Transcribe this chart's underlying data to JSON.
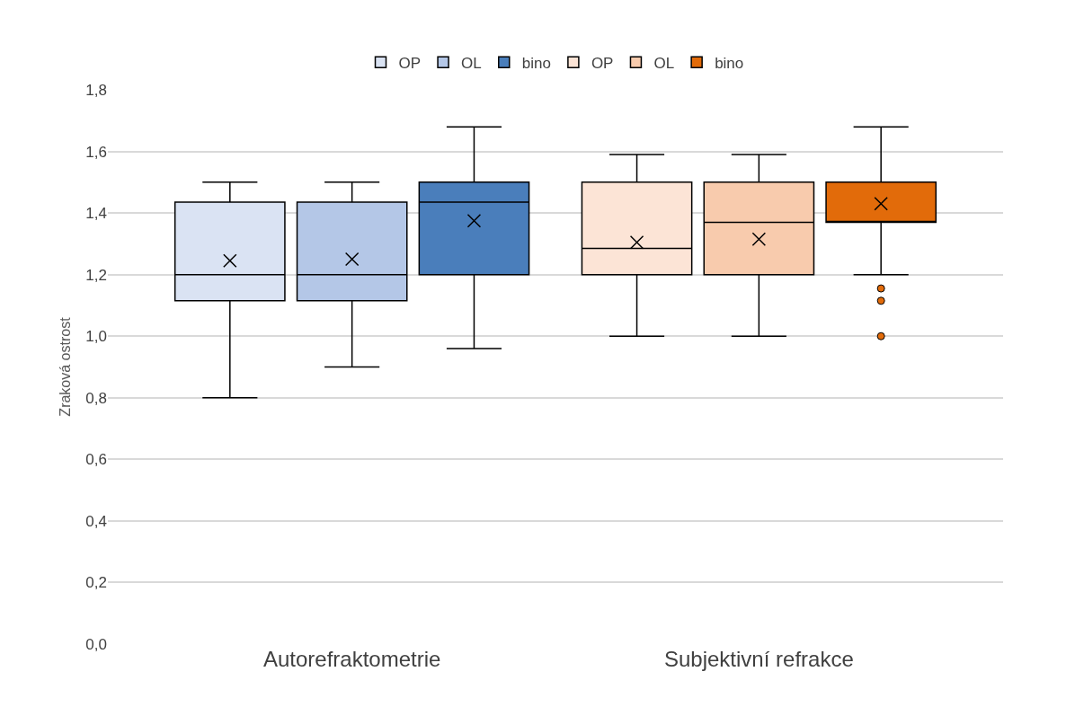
{
  "chart_data": {
    "type": "box",
    "ylabel": "Zraková ostrost",
    "categories": [
      "Autorefraktometrie",
      "Subjektivní refrakce"
    ],
    "ylim": [
      0,
      1.8
    ],
    "yticks": [
      {
        "value": 0,
        "label": "0,0"
      },
      {
        "value": 0.2,
        "label": "0,2"
      },
      {
        "value": 0.4,
        "label": "0,4"
      },
      {
        "value": 0.6,
        "label": "0,6"
      },
      {
        "value": 0.8,
        "label": "0,8"
      },
      {
        "value": 1.0,
        "label": "1,0"
      },
      {
        "value": 1.2,
        "label": "1,2"
      },
      {
        "value": 1.4,
        "label": "1,4"
      },
      {
        "value": 1.6,
        "label": "1,6"
      },
      {
        "value": 1.8,
        "label": "1,8"
      }
    ],
    "grid": "y",
    "legend": "top",
    "marker": "cross",
    "series": [
      {
        "name": "OP",
        "color": "#dae3f3",
        "boxes": [
          {
            "low": 0.8,
            "q1": 1.115,
            "median": 1.2,
            "q3": 1.435,
            "high": 1.5,
            "mean": 1.245
          },
          null
        ]
      },
      {
        "name": "OL",
        "color": "#b4c7e7",
        "boxes": [
          {
            "low": 0.9,
            "q1": 1.115,
            "median": 1.2,
            "q3": 1.435,
            "high": 1.5,
            "mean": 1.25
          },
          null
        ]
      },
      {
        "name": "bino",
        "color": "#4a7ebb",
        "boxes": [
          {
            "low": 0.96,
            "q1": 1.2,
            "median": 1.435,
            "q3": 1.5,
            "high": 1.68,
            "mean": 1.375
          },
          null
        ]
      },
      {
        "name": "OP",
        "color": "#fce4d6",
        "boxes": [
          null,
          {
            "low": 1.0,
            "q1": 1.2,
            "median": 1.285,
            "q3": 1.5,
            "high": 1.59,
            "mean": 1.305
          }
        ]
      },
      {
        "name": "OL",
        "color": "#f8cbad",
        "boxes": [
          null,
          {
            "low": 1.0,
            "q1": 1.2,
            "median": 1.37,
            "q3": 1.5,
            "high": 1.59,
            "mean": 1.315
          }
        ]
      },
      {
        "name": "bino",
        "color": "#e26b0a",
        "boxes": [
          null,
          {
            "low": 1.2,
            "q1": 1.37,
            "median": 1.37,
            "q3": 1.5,
            "high": 1.68,
            "mean": 1.43,
            "outliers": [
              1.155,
              1.115,
              1.0
            ]
          }
        ]
      }
    ]
  }
}
